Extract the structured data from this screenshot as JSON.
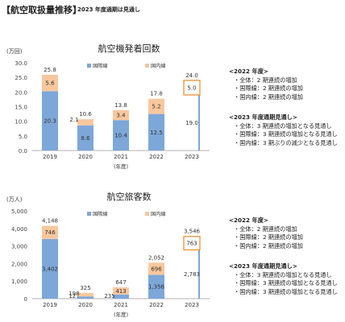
{
  "header": {
    "title": "【航空取扱量推移】",
    "subtitle": "2023 年度通期は見通し"
  },
  "colors": {
    "international": "#7da7d9",
    "domestic": "#f9c79d",
    "forecast_outline": "#f08a24",
    "axis": "#999999"
  },
  "chart_data": [
    {
      "type": "bar",
      "stacked": true,
      "title": "航空機発着回数",
      "ylabel": "(万回)",
      "xlabel": "(年度)",
      "ylim": [
        0,
        30
      ],
      "yticks": [
        "0.0",
        "5.0",
        "10.0",
        "15.0",
        "20.0",
        "25.0",
        "30.0"
      ],
      "categories": [
        "2019",
        "2020",
        "2021",
        "2022",
        "2023"
      ],
      "forecast_index": 4,
      "series": [
        {
          "name": "国際線",
          "values": [
            20.3,
            8.6,
            10.4,
            12.5,
            19.0
          ],
          "labels": [
            "20.3",
            "8.6",
            "10.4",
            "12.5",
            "19.0"
          ]
        },
        {
          "name": "国内線",
          "values": [
            5.6,
            2.1,
            3.4,
            5.2,
            5.0
          ],
          "labels": [
            "5.6",
            "2.1",
            "3.4",
            "5.2",
            "5.0"
          ]
        }
      ],
      "totals": [
        "25.8",
        "10.6",
        "13.8",
        "17.8",
        "24.0"
      ],
      "legend": "top-center"
    },
    {
      "type": "bar",
      "stacked": true,
      "title": "航空旅客数",
      "ylabel": "(万人)",
      "xlabel": "(年度)",
      "ylim": [
        0,
        5000
      ],
      "yticks": [
        "0",
        "1,000",
        "2,000",
        "3,000",
        "4,000",
        "5,000"
      ],
      "categories": [
        "2019",
        "2020",
        "2021",
        "2022",
        "2023"
      ],
      "forecast_index": 4,
      "series": [
        {
          "name": "国際線",
          "values": [
            3402,
            127,
            235,
            1356,
            2783
          ],
          "labels": [
            "3,402",
            "127",
            "235",
            "1,356",
            "2,783"
          ]
        },
        {
          "name": "国内線",
          "values": [
            746,
            198,
            413,
            696,
            763
          ],
          "labels": [
            "746",
            "198",
            "413",
            "696",
            "763"
          ]
        }
      ],
      "totals": [
        "4,148",
        "325",
        "647",
        "2,052",
        "3,546"
      ],
      "legend": "top-center"
    }
  ],
  "notes": [
    {
      "heading": "<2022 年度>",
      "items": [
        "・全体：2 期連続の増加",
        "・国際線：2 期連続の増加",
        "・国内線：2 期連続の増加"
      ]
    },
    {
      "heading": "<2023 年度通期見通し>",
      "items": [
        "・全体：3 期連続の増加となる見通し",
        "・国際線：3 期連続の増加となる見通し",
        "・国内線：3 期ぶりの減少となる見通し"
      ]
    },
    {
      "heading": "<2022 年度>",
      "items": [
        "・全体：2 期連続の増加",
        "・国際線：2 期連続の増加",
        "・国内線：2 期連続の増加"
      ]
    },
    {
      "heading": "<2023 年度通期見通し>",
      "items": [
        "・全体：3 期連続の増加となる見通し",
        "・国際線：3 期連続の増加となる見通し",
        "・国内線：3 期連続の増加となる見通し"
      ]
    }
  ]
}
